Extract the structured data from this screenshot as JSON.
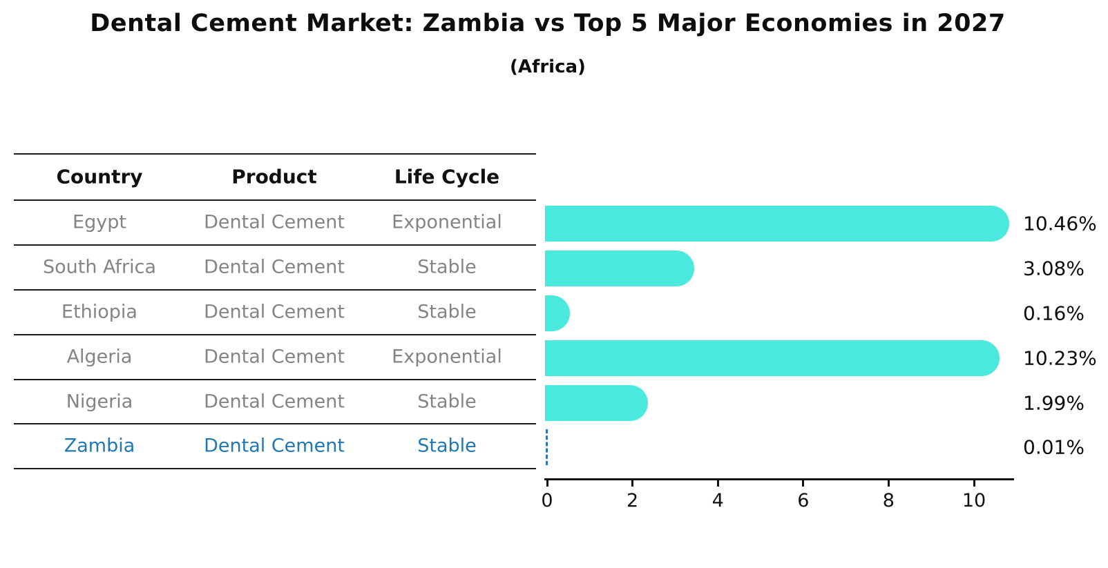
{
  "title": "Dental Cement Market: Zambia vs Top 5 Major Economies in 2027",
  "subtitle": "(Africa)",
  "table": {
    "headers": [
      "Country",
      "Product",
      "Life Cycle"
    ],
    "rows": [
      {
        "country": "Egypt",
        "product": "Dental Cement",
        "life_cycle": "Exponential",
        "highlight": false
      },
      {
        "country": "South Africa",
        "product": "Dental Cement",
        "life_cycle": "Stable",
        "highlight": false
      },
      {
        "country": "Ethiopia",
        "product": "Dental Cement",
        "life_cycle": "Stable",
        "highlight": false
      },
      {
        "country": "Algeria",
        "product": "Dental Cement",
        "life_cycle": "Exponential",
        "highlight": false
      },
      {
        "country": "Nigeria",
        "product": "Dental Cement",
        "life_cycle": "Stable",
        "highlight": false
      },
      {
        "country": "Zambia",
        "product": "Dental Cement",
        "life_cycle": "Stable",
        "highlight": true
      }
    ]
  },
  "chart_data": {
    "type": "bar",
    "orientation": "horizontal",
    "title": "Dental Cement Market: Zambia vs Top 5 Major Economies in 2027 (Africa)",
    "categories": [
      "Egypt",
      "South Africa",
      "Ethiopia",
      "Algeria",
      "Nigeria",
      "Zambia"
    ],
    "values": [
      10.46,
      3.08,
      0.16,
      10.23,
      1.99,
      0.01
    ],
    "value_labels": [
      "10.46%",
      "3.08%",
      "0.16%",
      "10.23%",
      "1.99%",
      "0.01%"
    ],
    "x_ticks": [
      "0",
      "2",
      "4",
      "6",
      "8",
      "10"
    ],
    "xlim": [
      0,
      11
    ],
    "grid": false,
    "legend": null,
    "bar_color": "#4BE8E0",
    "highlight_index": 5,
    "highlight_style": "dashed-blue-outline"
  },
  "colors": {
    "bar": "#4BE8E0",
    "highlight_text": "#1F77B4",
    "highlight_dash": "#2E74B5",
    "row_text": "#848484",
    "header_text": "#111111",
    "axis": "#111111",
    "background": "#FFFFFF"
  }
}
